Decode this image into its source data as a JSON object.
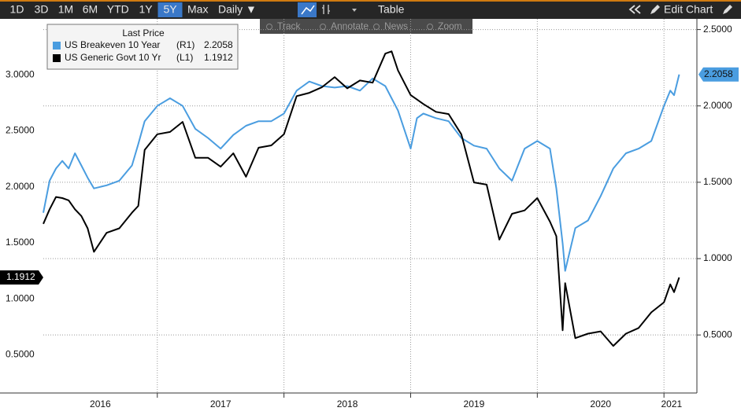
{
  "toolbar": {
    "ranges": [
      "1D",
      "3D",
      "1M",
      "6M",
      "YTD",
      "1Y",
      "5Y",
      "Max"
    ],
    "active_range": 6,
    "frequency": "Daily ▼",
    "table": "Table",
    "edit": "Edit Chart",
    "tools": [
      "Track",
      "Annotate",
      "News",
      "Zoom"
    ]
  },
  "chart_data": {
    "type": "line",
    "legend_title": "Last Price",
    "x": [
      2016.1,
      2016.15,
      2016.2,
      2016.25,
      2016.3,
      2016.35,
      2016.4,
      2016.45,
      2016.5,
      2016.6,
      2016.7,
      2016.8,
      2016.85,
      2016.9,
      2017.0,
      2017.1,
      2017.2,
      2017.3,
      2017.4,
      2017.5,
      2017.6,
      2017.7,
      2017.8,
      2017.9,
      2018.0,
      2018.1,
      2018.2,
      2018.3,
      2018.4,
      2018.5,
      2018.6,
      2018.7,
      2018.8,
      2018.85,
      2018.9,
      2019.0,
      2019.05,
      2019.1,
      2019.2,
      2019.3,
      2019.4,
      2019.5,
      2019.6,
      2019.7,
      2019.8,
      2019.9,
      2020.0,
      2020.1,
      2020.15,
      2020.2,
      2020.22,
      2020.3,
      2020.4,
      2020.5,
      2020.6,
      2020.7,
      2020.8,
      2020.9,
      2021.0,
      2021.05,
      2021.08,
      2021.12
    ],
    "series": [
      {
        "name": "US Breakeven 10 Year",
        "axis_tag": "(R1)",
        "axis": "y2",
        "color": "#4a9de0",
        "values": [
          1.3,
          1.51,
          1.59,
          1.64,
          1.59,
          1.69,
          1.61,
          1.53,
          1.46,
          1.48,
          1.51,
          1.61,
          1.75,
          1.9,
          2.0,
          2.05,
          2.0,
          1.85,
          1.79,
          1.72,
          1.81,
          1.87,
          1.9,
          1.9,
          1.95,
          2.1,
          2.16,
          2.13,
          2.12,
          2.13,
          2.1,
          2.18,
          2.13,
          2.05,
          1.97,
          1.72,
          1.92,
          1.95,
          1.92,
          1.9,
          1.79,
          1.74,
          1.72,
          1.59,
          1.51,
          1.72,
          1.77,
          1.72,
          1.46,
          1.1,
          0.92,
          1.2,
          1.25,
          1.41,
          1.59,
          1.69,
          1.72,
          1.77,
          2.0,
          2.1,
          2.07,
          2.2058
        ]
      },
      {
        "name": "US Generic Govt 10 Yr",
        "axis_tag": "(L1)",
        "color": "#000000",
        "values": [
          1.67,
          1.8,
          1.91,
          1.9,
          1.88,
          1.8,
          1.74,
          1.63,
          1.42,
          1.59,
          1.63,
          1.77,
          1.83,
          2.33,
          2.47,
          2.49,
          2.58,
          2.26,
          2.26,
          2.18,
          2.3,
          2.09,
          2.35,
          2.37,
          2.47,
          2.81,
          2.84,
          2.89,
          2.98,
          2.88,
          2.95,
          2.93,
          3.19,
          3.21,
          3.04,
          2.82,
          2.78,
          2.74,
          2.67,
          2.65,
          2.47,
          2.04,
          2.02,
          1.53,
          1.76,
          1.79,
          1.9,
          1.69,
          1.56,
          0.72,
          1.14,
          0.65,
          0.69,
          0.71,
          0.58,
          0.69,
          0.74,
          0.88,
          0.97,
          1.13,
          1.06,
          1.1912
        ]
      }
    ],
    "xlim": [
      2016.1,
      2021.26
    ],
    "xticks": [
      2017,
      2018,
      2019,
      2020,
      2021
    ],
    "year_labels": [
      "2016",
      "2017",
      "2018",
      "2019",
      "2020",
      "2021"
    ],
    "ylim": [
      0.16,
      3.5
    ],
    "yticks": [
      {
        "value": 0.5,
        "label": "0.5000"
      },
      {
        "value": 1,
        "label": "1.0000"
      },
      {
        "value": 1.5,
        "label": "1.5000"
      },
      {
        "value": 2,
        "label": "2.0000"
      },
      {
        "value": 2.5,
        "label": "2.5000"
      },
      {
        "value": 3,
        "label": "3.0000"
      }
    ],
    "y2lim": [
      0.12,
      2.57
    ],
    "y2ticks": [
      {
        "value": 0.5,
        "label": "0.5000"
      },
      {
        "value": 1,
        "label": "1.0000"
      },
      {
        "value": 1.5,
        "label": "1.5000"
      },
      {
        "value": 2,
        "label": "2.0000"
      },
      {
        "value": 2.5,
        "label": "2.5000"
      }
    ],
    "grid": true
  }
}
